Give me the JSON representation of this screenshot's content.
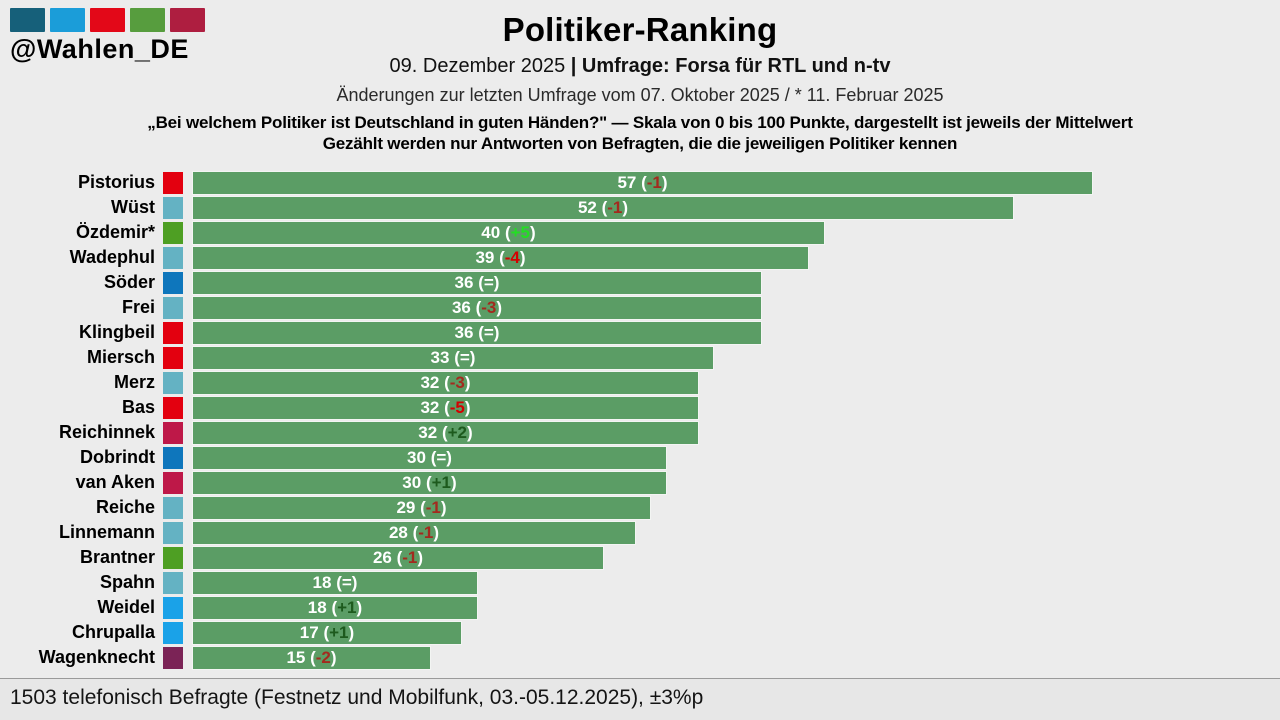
{
  "brand": {
    "handle": "@Wahlen_DE",
    "logo_colors": [
      "#16607a",
      "#1b9dd9",
      "#e30818",
      "#579d3e",
      "#ae1e40"
    ]
  },
  "header": {
    "title": "Politiker-Ranking",
    "date": "09. Dezember 2025",
    "separator": " | ",
    "source": "Umfrage: Forsa für RTL und n-tv",
    "changes_note": "Änderungen zur letzten Umfrage vom 07. Oktober 2025 / * 11. Februar 2025",
    "question_line1": "„Bei welchem Politiker ist Deutschland in guten Händen?\" — Skala von 0 bis 100 Punkte, dargestellt ist jeweils der Mittelwert",
    "question_line2": "Gezählt werden nur Antworten von Befragten, die die jeweiligen Politiker kennen"
  },
  "chart_data": {
    "type": "bar",
    "orientation": "horizontal",
    "scale_note": "Skala von 0 bis 100 Punkte",
    "xlim": [
      0,
      100
    ],
    "bar_color": "#5b9d65",
    "label_wrap": {
      "open": "(",
      "close": ")"
    },
    "change_colors": {
      "neutral": "#ffffff",
      "neg": "#a32a1e",
      "neg_strong": "#d40000",
      "pos": "#1d5a1d",
      "pos_strong": "#22df22"
    },
    "rows": [
      {
        "name": "Pistorius",
        "party": "SPD",
        "party_color": "#e3000f",
        "value": 57,
        "change": "-1",
        "change_class": "neg"
      },
      {
        "name": "Wüst",
        "party": "CDU",
        "party_color": "#64b2c3",
        "value": 52,
        "change": "-1",
        "change_class": "neg"
      },
      {
        "name": "Özdemir*",
        "party": "Grüne",
        "party_color": "#4e9f23",
        "value": 40,
        "change": "+5",
        "change_class": "pos_strong"
      },
      {
        "name": "Wadephul",
        "party": "CDU",
        "party_color": "#64b2c3",
        "value": 39,
        "change": "-4",
        "change_class": "neg_strong"
      },
      {
        "name": "Söder",
        "party": "CSU",
        "party_color": "#0e76bc",
        "value": 36,
        "change": "=",
        "change_class": "neutral"
      },
      {
        "name": "Frei",
        "party": "CDU",
        "party_color": "#64b2c3",
        "value": 36,
        "change": "-3",
        "change_class": "neg"
      },
      {
        "name": "Klingbeil",
        "party": "SPD",
        "party_color": "#e3000f",
        "value": 36,
        "change": "=",
        "change_class": "neutral"
      },
      {
        "name": "Miersch",
        "party": "SPD",
        "party_color": "#e3000f",
        "value": 33,
        "change": "=",
        "change_class": "neutral"
      },
      {
        "name": "Merz",
        "party": "CDU",
        "party_color": "#64b2c3",
        "value": 32,
        "change": "-3",
        "change_class": "neg"
      },
      {
        "name": "Bas",
        "party": "SPD",
        "party_color": "#e3000f",
        "value": 32,
        "change": "-5",
        "change_class": "neg_strong"
      },
      {
        "name": "Reichinnek",
        "party": "Linke",
        "party_color": "#be1848",
        "value": 32,
        "change": "+2",
        "change_class": "pos"
      },
      {
        "name": "Dobrindt",
        "party": "CSU",
        "party_color": "#0e76bc",
        "value": 30,
        "change": "=",
        "change_class": "neutral"
      },
      {
        "name": "van Aken",
        "party": "Linke",
        "party_color": "#be1848",
        "value": 30,
        "change": "+1",
        "change_class": "pos"
      },
      {
        "name": "Reiche",
        "party": "CDU",
        "party_color": "#64b2c3",
        "value": 29,
        "change": "-1",
        "change_class": "neg"
      },
      {
        "name": "Linnemann",
        "party": "CDU",
        "party_color": "#64b2c3",
        "value": 28,
        "change": "-1",
        "change_class": "neg"
      },
      {
        "name": "Brantner",
        "party": "Grüne",
        "party_color": "#4e9f23",
        "value": 26,
        "change": "-1",
        "change_class": "neg"
      },
      {
        "name": "Spahn",
        "party": "CDU",
        "party_color": "#64b2c3",
        "value": 18,
        "change": "=",
        "change_class": "neutral"
      },
      {
        "name": "Weidel",
        "party": "AfD",
        "party_color": "#1aa2e8",
        "value": 18,
        "change": "+1",
        "change_class": "pos"
      },
      {
        "name": "Chrupalla",
        "party": "AfD",
        "party_color": "#1aa2e8",
        "value": 17,
        "change": "+1",
        "change_class": "pos"
      },
      {
        "name": "Wagenknecht",
        "party": "BSW",
        "party_color": "#7b2356",
        "value": 15,
        "change": "-2",
        "change_class": "neg"
      }
    ]
  },
  "footer": {
    "note": "1503 telefonisch Befragte (Festnetz und Mobilfunk, 03.-05.12.2025), ±3%p"
  }
}
